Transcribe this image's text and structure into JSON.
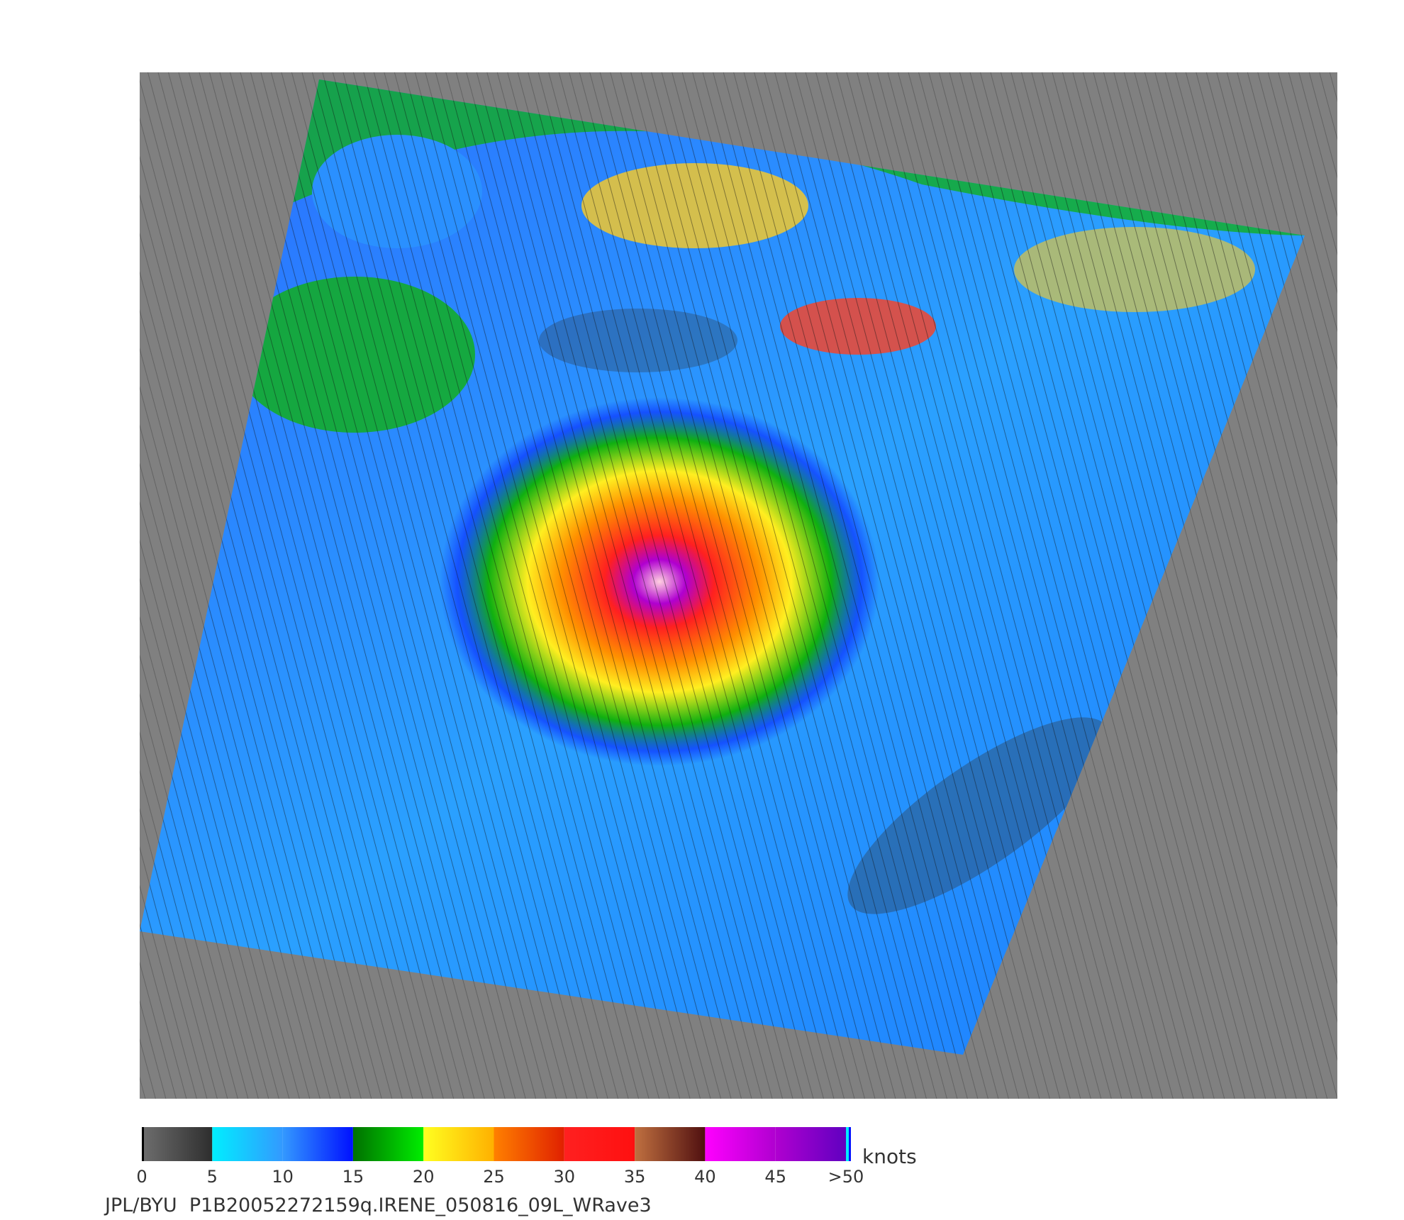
{
  "colorbar": {
    "range": [
      0,
      50
    ],
    "ticks": [
      0,
      5,
      10,
      15,
      20,
      25,
      30,
      35,
      40,
      45,
      {
        "value": 50,
        "label": ">50"
      }
    ],
    "unit": "knots",
    "segments": [
      [
        "#6e6e6e",
        "#2e2e2e"
      ],
      [
        "#00eeff",
        "#3399ff"
      ],
      [
        "#3399ff",
        "#0010ff"
      ],
      [
        "#007000",
        "#00ee00"
      ],
      [
        "#ffff20",
        "#ffb000"
      ],
      [
        "#ff8000",
        "#e02000"
      ],
      [
        "#ff2020",
        "#ff1010"
      ],
      [
        "#c07040",
        "#501010"
      ],
      [
        "#ff00ff",
        "#b000d0"
      ],
      [
        "#b000d0",
        "#6000c0"
      ]
    ]
  },
  "footer": "JPL/BYU  P1B20052272159q.IRENE_050816_09L_WRave3"
}
